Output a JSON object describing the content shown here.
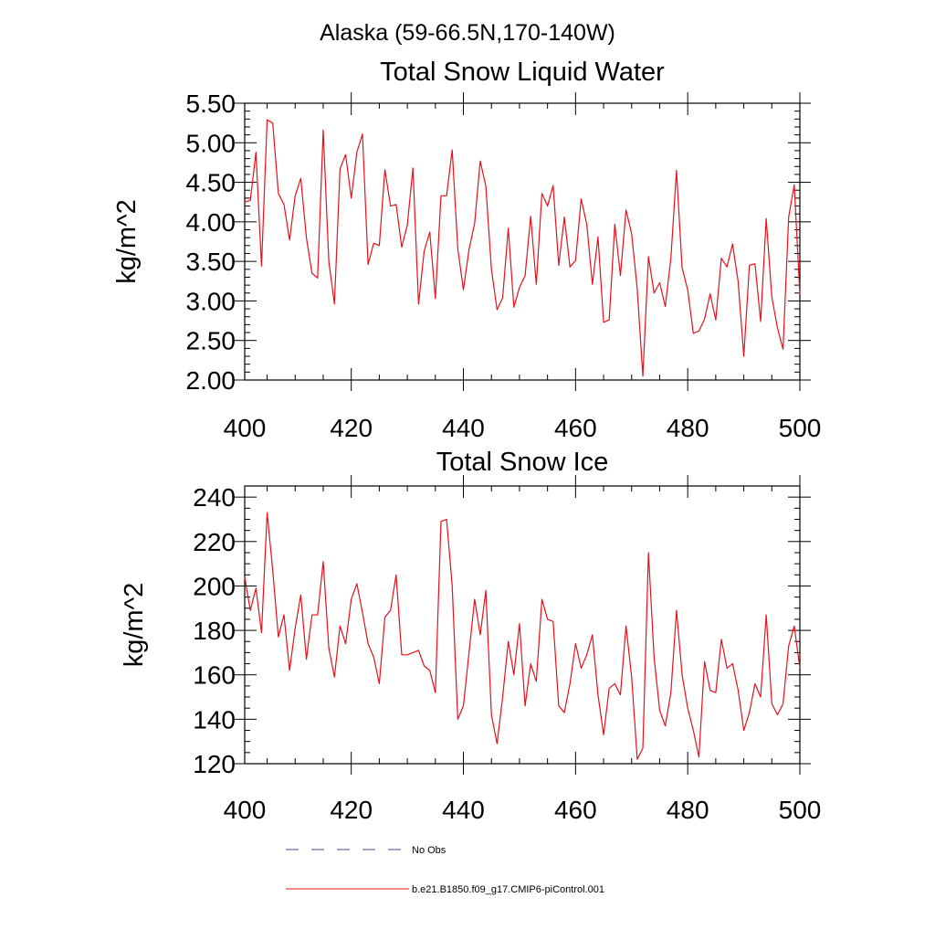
{
  "suptitle": "Alaska (59-66.5N,170-140W)",
  "legend": {
    "position": "bottom-left",
    "entries": [
      {
        "label": "No Obs",
        "color": "#4b4b8f",
        "style": "dashed"
      },
      {
        "label": "b.e21.B1850.f09_g17.CMIP6-piControl.001",
        "color": "#e8101a",
        "style": "solid"
      }
    ]
  },
  "chart_data": [
    {
      "type": "line",
      "title": "Total Snow Liquid Water",
      "xlabel": "",
      "ylabel": "kg/m^2",
      "xlim": [
        401,
        500
      ],
      "ylim": [
        2.0,
        5.5
      ],
      "xticks": [
        "400",
        "420",
        "440",
        "460",
        "480",
        "500"
      ],
      "yticks": [
        "2.00",
        "2.50",
        "3.00",
        "3.50",
        "4.00",
        "4.50",
        "5.00",
        "5.50"
      ],
      "grid": false,
      "series": [
        {
          "color": "#e8101a",
          "x_start": 401,
          "x_step": 1,
          "values": [
            4.25,
            4.27,
            4.88,
            3.44,
            5.29,
            5.25,
            4.36,
            4.22,
            3.77,
            4.33,
            4.55,
            3.8,
            3.35,
            3.29,
            5.16,
            3.5,
            2.96,
            4.67,
            4.85,
            4.3,
            4.88,
            5.11,
            3.46,
            3.73,
            3.7,
            4.66,
            4.2,
            4.22,
            3.68,
            3.96,
            4.68,
            2.96,
            3.63,
            3.87,
            3.03,
            4.33,
            4.33,
            4.91,
            3.66,
            3.14,
            3.65,
            3.98,
            4.77,
            4.45,
            3.4,
            2.89,
            3.04,
            3.92,
            2.92,
            3.17,
            3.32,
            4.07,
            3.21,
            4.36,
            4.2,
            4.46,
            3.45,
            4.06,
            3.43,
            3.51,
            4.29,
            3.97,
            3.21,
            3.81,
            2.73,
            2.76,
            3.97,
            3.32,
            4.15,
            3.85,
            3.15,
            2.05,
            3.56,
            3.1,
            3.23,
            2.93,
            3.54,
            4.65,
            3.42,
            3.14,
            2.59,
            2.62,
            2.77,
            3.09,
            2.76,
            3.54,
            3.43,
            3.72,
            3.24,
            2.3,
            3.45,
            3.47,
            2.74,
            4.04,
            3.05,
            2.66,
            2.39,
            4.06,
            4.47,
            3.08
          ]
        }
      ]
    },
    {
      "type": "line",
      "title": "Total Snow Ice",
      "xlabel": "",
      "ylabel": "kg/m^2",
      "xlim": [
        401,
        500
      ],
      "ylim": [
        120,
        245
      ],
      "xticks": [
        "400",
        "420",
        "440",
        "460",
        "480",
        "500"
      ],
      "yticks": [
        "120",
        "140",
        "160",
        "180",
        "200",
        "220",
        "240"
      ],
      "grid": false,
      "series": [
        {
          "color": "#e8101a",
          "x_start": 401,
          "x_step": 1,
          "values": [
            204,
            189,
            199,
            179,
            233,
            207,
            177,
            187,
            162,
            181,
            196,
            167,
            187,
            187,
            211,
            172,
            159,
            182,
            174,
            194,
            201,
            188,
            174,
            168,
            156,
            186,
            189,
            205,
            169,
            169,
            170,
            171,
            164,
            162,
            152,
            229,
            230,
            200,
            140,
            146,
            170,
            194,
            178,
            198,
            142,
            129,
            150,
            175,
            160,
            183,
            146,
            165,
            157,
            194,
            185,
            184,
            146,
            143,
            156,
            174,
            163,
            169,
            178,
            151,
            133,
            154,
            156,
            151,
            182,
            159,
            122,
            127,
            215,
            168,
            144,
            137,
            152,
            189,
            160,
            145,
            135,
            123,
            166,
            153,
            152,
            176,
            163,
            165,
            153,
            135,
            143,
            156,
            150,
            187,
            147,
            142,
            147,
            173,
            182,
            163
          ]
        }
      ]
    }
  ]
}
